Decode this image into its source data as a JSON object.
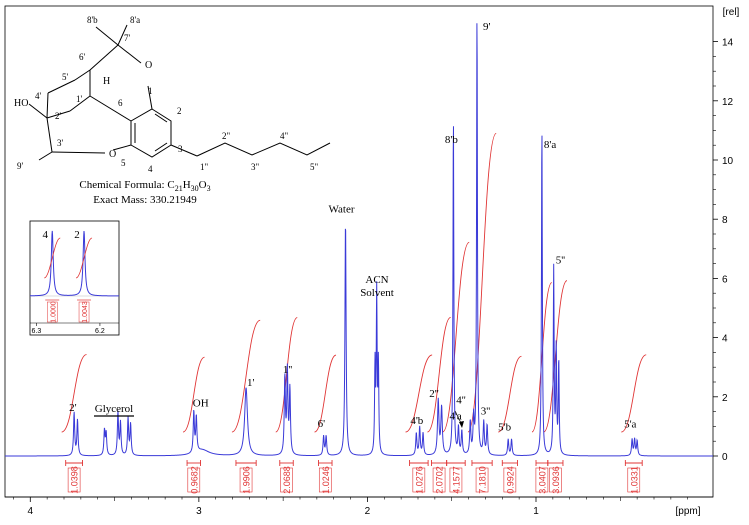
{
  "chart_data": {
    "type": "line",
    "x_unit_label": "[ppm]",
    "y_unit_label": "[rel]",
    "xlim": [
      4.15,
      -0.05
    ],
    "ylim": [
      -0.3,
      15.1
    ],
    "x_ticks": [
      4,
      3,
      2,
      1
    ],
    "y_ticks": [
      0,
      2,
      4,
      6,
      8,
      10,
      12,
      14
    ],
    "peaks": [
      {
        "label": "2'",
        "ppm": 3.74,
        "height": 1.45,
        "width": 0.004
      },
      {
        "label": "",
        "ppm": 3.72,
        "height": 1.2,
        "width": 0.004
      },
      {
        "label": "",
        "ppm": 3.56,
        "height": 0.85,
        "width": 0.004
      },
      {
        "label": "",
        "ppm": 3.55,
        "height": 0.75,
        "width": 0.004
      },
      {
        "label": "",
        "ppm": 3.48,
        "height": 1.45,
        "width": 0.004
      },
      {
        "label": "",
        "ppm": 3.465,
        "height": 1.1,
        "width": 0.004
      },
      {
        "label": "",
        "ppm": 3.42,
        "height": 1.25,
        "width": 0.004
      },
      {
        "label": "",
        "ppm": 3.405,
        "height": 1.05,
        "width": 0.004
      },
      {
        "label": "OH",
        "ppm": 3.03,
        "height": 1.4,
        "width": 0.004
      },
      {
        "label": "",
        "ppm": 3.015,
        "height": 1.2,
        "width": 0.004
      },
      {
        "label": "",
        "ppm": 2.98,
        "height": 0.2,
        "width": 0.05
      },
      {
        "label": "1'",
        "ppm": 2.72,
        "height": 2.3,
        "width": 0.01
      },
      {
        "label": "1''",
        "ppm": 2.49,
        "height": 2.6,
        "width": 0.004
      },
      {
        "label": "",
        "ppm": 2.475,
        "height": 2.8,
        "width": 0.004
      },
      {
        "label": "",
        "ppm": 2.46,
        "height": 2.2,
        "width": 0.004
      },
      {
        "label": "6'",
        "ppm": 2.26,
        "height": 0.65,
        "width": 0.004
      },
      {
        "label": "",
        "ppm": 2.245,
        "height": 0.65,
        "width": 0.004
      },
      {
        "label": "Water",
        "ppm": 2.13,
        "height": 7.95,
        "width": 0.004
      },
      {
        "label": "ACN Solvent",
        "ppm": 1.955,
        "height": 3.0,
        "width": 0.003
      },
      {
        "label": "",
        "ppm": 1.945,
        "height": 5.4,
        "width": 0.003
      },
      {
        "label": "",
        "ppm": 1.935,
        "height": 3.0,
        "width": 0.003
      },
      {
        "label": "4'b",
        "ppm": 1.71,
        "height": 0.75,
        "width": 0.004
      },
      {
        "label": "",
        "ppm": 1.69,
        "height": 0.95,
        "width": 0.004
      },
      {
        "label": "",
        "ppm": 1.67,
        "height": 0.75,
        "width": 0.004
      },
      {
        "label": "2''",
        "ppm": 1.58,
        "height": 1.85,
        "width": 0.005
      },
      {
        "label": "",
        "ppm": 1.56,
        "height": 1.6,
        "width": 0.005
      },
      {
        "label": "8'b",
        "ppm": 1.49,
        "height": 11.45,
        "width": 0.003
      },
      {
        "label": "4'a",
        "ppm": 1.46,
        "height": 0.9,
        "width": 0.004
      },
      {
        "label": "",
        "ppm": 1.44,
        "height": 0.8,
        "width": 0.004
      },
      {
        "label": "4''",
        "ppm": 1.39,
        "height": 1.1,
        "width": 0.004
      },
      {
        "label": "",
        "ppm": 1.37,
        "height": 1.2,
        "width": 0.004
      },
      {
        "label": "9'",
        "ppm": 1.35,
        "height": 15.0,
        "width": 0.003
      },
      {
        "label": "3''",
        "ppm": 1.31,
        "height": 1.1,
        "width": 0.004
      },
      {
        "label": "",
        "ppm": 1.29,
        "height": 1.0,
        "width": 0.004
      },
      {
        "label": "5'b",
        "ppm": 1.165,
        "height": 0.55,
        "width": 0.004
      },
      {
        "label": "",
        "ppm": 1.145,
        "height": 0.55,
        "width": 0.004
      },
      {
        "label": "8'a",
        "ppm": 0.965,
        "height": 11.15,
        "width": 0.003
      },
      {
        "label": "5''",
        "ppm": 0.895,
        "height": 6.3,
        "width": 0.003
      },
      {
        "label": "",
        "ppm": 0.88,
        "height": 3.6,
        "width": 0.003
      },
      {
        "label": "",
        "ppm": 0.865,
        "height": 3.2,
        "width": 0.003
      },
      {
        "label": "5'a",
        "ppm": 0.43,
        "height": 0.55,
        "width": 0.004
      },
      {
        "label": "",
        "ppm": 0.415,
        "height": 0.55,
        "width": 0.004
      },
      {
        "label": "",
        "ppm": 0.4,
        "height": 0.5,
        "width": 0.004
      }
    ],
    "integrals": [
      {
        "label": "2'",
        "value": "1.0398",
        "from_ppm": 3.79,
        "to_ppm": 3.69
      },
      {
        "label": "OH",
        "value": "0.9682",
        "from_ppm": 3.07,
        "to_ppm": 2.99
      },
      {
        "label": "1'",
        "value": "1.9906",
        "from_ppm": 2.78,
        "to_ppm": 2.66
      },
      {
        "label": "1''",
        "value": "2.0688",
        "from_ppm": 2.52,
        "to_ppm": 2.44
      },
      {
        "label": "6'",
        "value": "1.0246",
        "from_ppm": 2.29,
        "to_ppm": 2.21
      },
      {
        "label": "4'b",
        "value": "1.0276",
        "from_ppm": 1.75,
        "to_ppm": 1.64
      },
      {
        "label": "2''",
        "value": "2.0702",
        "from_ppm": 1.62,
        "to_ppm": 1.53
      },
      {
        "label": "8'b",
        "value": "4.1577",
        "from_ppm": 1.53,
        "to_ppm": 1.42
      },
      {
        "label": "9'",
        "value": "7.1810",
        "from_ppm": 1.38,
        "to_ppm": 1.26
      },
      {
        "label": "5'b",
        "value": "0.9924",
        "from_ppm": 1.2,
        "to_ppm": 1.11
      },
      {
        "label": "8'a",
        "value": "3.0407",
        "from_ppm": 1.0,
        "to_ppm": 0.93
      },
      {
        "label": "5''",
        "value": "3.0936",
        "from_ppm": 0.93,
        "to_ppm": 0.84
      },
      {
        "label": "5'a",
        "value": "1.0331",
        "from_ppm": 0.47,
        "to_ppm": 0.37
      }
    ],
    "annotations": [
      "Glycerol"
    ],
    "inset": {
      "xlim": [
        6.31,
        6.17
      ],
      "x_ticks": [
        "6.3",
        "6.2"
      ],
      "peaks": [
        {
          "label": "4",
          "ppm": 6.275,
          "integral": "1.0000"
        },
        {
          "label": "2",
          "ppm": 6.225,
          "integral": "1.0043"
        }
      ]
    }
  },
  "molecule": {
    "formula_prefix": "Chemical Formula: C",
    "formula_sub1": "21",
    "formula_mid": "H",
    "formula_sub2": "30",
    "formula_mid2": "O",
    "formula_sub3": "3",
    "exact_mass": "Exact Mass: 330.21949",
    "atom_labels": {
      "a8b": "8'b",
      "a8a": "8'a",
      "a7": "7'",
      "a6p": "6'",
      "a5p": "5'",
      "aO1": "O",
      "aO2": "O",
      "aH": "H",
      "aHO": "HO",
      "a4p": "4'",
      "a1p": "1'",
      "a2p": "2'",
      "a3p": "3'",
      "a9p": "9'",
      "r1": "1",
      "r2": "2",
      "r3": "3",
      "r4": "4",
      "r5": "5",
      "r6": "6",
      "c1": "1\"",
      "c2": "2\"",
      "c3": "3\"",
      "c4": "4\"",
      "c5": "5\""
    }
  }
}
